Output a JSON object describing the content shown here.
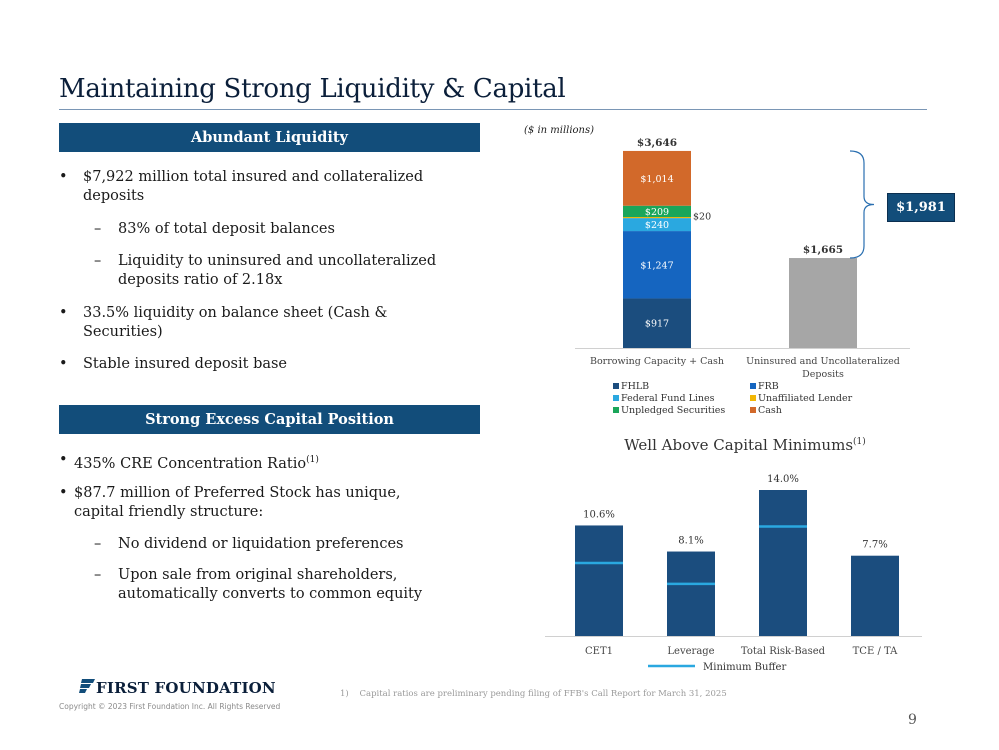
{
  "slide": {
    "title": "Maintaining Strong Liquidity & Capital",
    "page_number": "9",
    "footnote": "1)    Capital ratios are preliminary pending filing of FFB's Call Report for March 31, 2025",
    "logo_text": "FIRST FOUNDATION",
    "copyright": "Copyright © 2023 First Foundation Inc. All Rights Reserved"
  },
  "liquidity": {
    "header": "Abundant Liquidity",
    "bullet1": "$7,922 million total insured and collateralized deposits",
    "sub1": "83% of total deposit balances",
    "sub2": "Liquidity to uninsured and uncollateralized deposits ratio of 2.18x",
    "bullet2": "33.5% liquidity on balance sheet (Cash & Securities)",
    "bullet3": "Stable insured deposit base"
  },
  "capital": {
    "header": "Strong Excess Capital Position",
    "bullet1": "435% CRE Concentration Ratio",
    "bullet1_sup": "(1)",
    "bullet2": "$87.7 million of Preferred Stock has unique, capital friendly structure:",
    "sub1": "No dividend or liquidation preferences",
    "sub2": "Upon sale from original shareholders, automatically converts to common equity"
  },
  "colors": {
    "navy": "#124d7a",
    "fhlb": "#1b4d7e",
    "frb": "#1565c0",
    "fed_funds": "#2aa8e0",
    "unaffiliated": "#f2b705",
    "unpledged": "#1aa65a",
    "cash": "#d2692a",
    "gray_bar": "#a6a6a6",
    "min_buffer": "#2aa8e0"
  },
  "chart_data": [
    {
      "type": "bar",
      "stacked": true,
      "units_note": "($ in millions)",
      "categories": [
        "Borrowing Capacity + Cash",
        "Uninsured and Uncollateralized Deposits"
      ],
      "series": [
        {
          "name": "FHLB",
          "values": [
            917,
            0
          ],
          "labels": [
            "$917",
            ""
          ]
        },
        {
          "name": "FRB",
          "values": [
            1247,
            0
          ],
          "labels": [
            "$1,247",
            ""
          ]
        },
        {
          "name": "Federal Fund Lines",
          "values": [
            240,
            0
          ],
          "labels": [
            "$240",
            ""
          ]
        },
        {
          "name": "Unaffiliated Lender",
          "values": [
            20,
            0
          ],
          "labels": [
            "$20",
            ""
          ]
        },
        {
          "name": "Unpledged Securities",
          "values": [
            209,
            0
          ],
          "labels": [
            "$209",
            ""
          ]
        },
        {
          "name": "Cash",
          "values": [
            1014,
            0
          ],
          "labels": [
            "$1,014",
            ""
          ]
        },
        {
          "name": "Uninsured",
          "values": [
            0,
            1665
          ],
          "labels": [
            "",
            ""
          ]
        }
      ],
      "totals": [
        3646,
        1665
      ],
      "total_labels": [
        "$3,646",
        "$1,665"
      ],
      "difference": 1981,
      "difference_label": "$1,981",
      "legend": [
        "FHLB",
        "FRB",
        "Federal Fund Lines",
        "Unaffiliated Lender",
        "Unpledged Securities",
        "Cash"
      ],
      "ylim": [
        0,
        3646
      ]
    },
    {
      "type": "bar",
      "title": "Well Above Capital Minimums",
      "title_sup": "(1)",
      "categories": [
        "CET1",
        "Leverage",
        "Total Risk-Based",
        "TCE / TA"
      ],
      "values": [
        10.6,
        8.1,
        14.0,
        7.7
      ],
      "labels": [
        "10.6%",
        "8.1%",
        "14.0%",
        "7.7%"
      ],
      "minimum_buffer": [
        7.0,
        5.0,
        10.5,
        null
      ],
      "legend": [
        "Minimum Buffer"
      ],
      "ylim": [
        0,
        14.0
      ]
    }
  ]
}
